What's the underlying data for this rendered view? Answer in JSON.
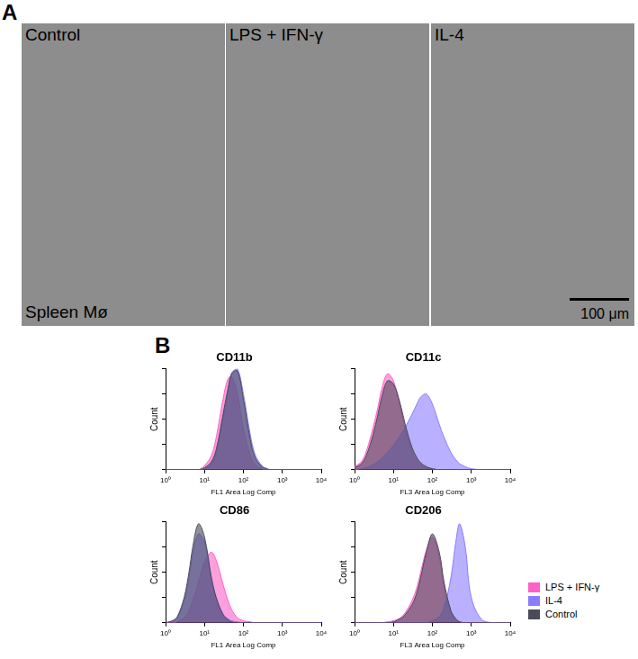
{
  "panels": {
    "A": {
      "label": "A",
      "images": [
        {
          "label": "Control"
        },
        {
          "label": "LPS + IFN-γ"
        },
        {
          "label": "IL-4"
        }
      ],
      "tissue_label": "Spleen Mø",
      "scale_bar": "100 μm"
    },
    "B": {
      "label": "B"
    }
  },
  "chart_data": [
    {
      "type": "area",
      "title": "CD11b",
      "xlabel": "FL1 Area Log Comp",
      "ylabel": "Count",
      "log": "x",
      "grid": false,
      "tick_labels": "x",
      "x": [
        1,
        1.5,
        2,
        3,
        4,
        5,
        7,
        10,
        15,
        20,
        30,
        40,
        50,
        70,
        100,
        150,
        200,
        300,
        400,
        500,
        700,
        1000,
        2000,
        5000,
        10000
      ],
      "xlim": [
        1,
        10000
      ],
      "xticks": [
        {
          "value": 1,
          "label": "10⁰"
        },
        {
          "value": 10,
          "label": "10¹"
        },
        {
          "value": 100,
          "label": "10²"
        },
        {
          "value": 1000,
          "label": "10³"
        },
        {
          "value": 10000,
          "label": "10⁴"
        }
      ],
      "ylim": [
        0,
        100
      ],
      "yticks": [
        0,
        25,
        50,
        75,
        100
      ],
      "series": [
        {
          "name": "LPS + IFN-γ",
          "color": "#ff5fc8",
          "values": [
            0,
            0,
            0,
            0,
            0,
            0,
            0,
            4,
            14,
            32,
            70,
            90,
            92,
            75,
            40,
            14,
            5,
            1,
            0,
            0,
            0,
            0,
            0,
            0,
            0
          ]
        },
        {
          "name": "IL-4",
          "color": "#8a7cff",
          "values": [
            0,
            0,
            0,
            0,
            0,
            0,
            0,
            1,
            6,
            17,
            50,
            78,
            96,
            100,
            75,
            35,
            15,
            4,
            1,
            0,
            0,
            0,
            0,
            0,
            0
          ]
        },
        {
          "name": "Control",
          "color": "#4a4a5a",
          "values": [
            0,
            0,
            0,
            0,
            0,
            0,
            0,
            2,
            8,
            20,
            55,
            80,
            95,
            98,
            70,
            30,
            12,
            3,
            1,
            0,
            0,
            0,
            0,
            0,
            0
          ]
        }
      ]
    },
    {
      "type": "area",
      "title": "CD11c",
      "xlabel": "FL3 Area Log Comp",
      "ylabel": "Count",
      "log": "x",
      "grid": false,
      "tick_labels": "x",
      "x": [
        1,
        1.5,
        2,
        3,
        4,
        5,
        7,
        10,
        15,
        20,
        30,
        40,
        50,
        70,
        100,
        150,
        200,
        300,
        400,
        500,
        700,
        1000,
        2000,
        5000,
        10000
      ],
      "xlim": [
        1,
        10000
      ],
      "xticks": [
        {
          "value": 1,
          "label": "10⁰"
        },
        {
          "value": 10,
          "label": "10¹"
        },
        {
          "value": 100,
          "label": "10²"
        },
        {
          "value": 1000,
          "label": "10³"
        },
        {
          "value": 10000,
          "label": "10⁴"
        }
      ],
      "ylim": [
        0,
        100
      ],
      "yticks": [
        0,
        25,
        50,
        75,
        100
      ],
      "series": [
        {
          "name": "LPS + IFN-γ",
          "color": "#ff5fc8",
          "values": [
            3,
            8,
            18,
            42,
            62,
            80,
            95,
            88,
            62,
            40,
            18,
            9,
            5,
            2,
            1,
            0,
            0,
            0,
            0,
            0,
            0,
            0,
            0,
            0,
            0
          ]
        },
        {
          "name": "IL-4",
          "color": "#8a7cff",
          "values": [
            0,
            1,
            2,
            5,
            8,
            11,
            17,
            24,
            34,
            42,
            55,
            65,
            72,
            75,
            65,
            45,
            32,
            17,
            10,
            6,
            3,
            1,
            0,
            0,
            0
          ]
        },
        {
          "name": "Control",
          "color": "#4a4a5a",
          "values": [
            2,
            6,
            14,
            35,
            55,
            72,
            88,
            85,
            65,
            45,
            22,
            12,
            7,
            3,
            1,
            0,
            0,
            0,
            0,
            0,
            0,
            0,
            0,
            0,
            0
          ]
        }
      ]
    },
    {
      "type": "area",
      "title": "CD86",
      "xlabel": "FL1 Area Log Comp",
      "ylabel": "Count",
      "log": "x",
      "grid": false,
      "tick_labels": "x",
      "x": [
        1,
        1.5,
        2,
        3,
        4,
        5,
        7,
        10,
        15,
        20,
        30,
        40,
        50,
        70,
        100,
        150,
        200,
        300,
        400,
        500,
        700,
        1000,
        2000,
        5000,
        10000
      ],
      "xlim": [
        1,
        10000
      ],
      "xticks": [
        {
          "value": 1,
          "label": "10⁰"
        },
        {
          "value": 10,
          "label": "10¹"
        },
        {
          "value": 100,
          "label": "10²"
        },
        {
          "value": 1000,
          "label": "10³"
        },
        {
          "value": 10000,
          "label": "10⁴"
        }
      ],
      "ylim": [
        0,
        100
      ],
      "yticks": [
        0,
        25,
        50,
        75,
        100
      ],
      "series": [
        {
          "name": "LPS + IFN-γ",
          "color": "#ff5fc8",
          "values": [
            0,
            0,
            1,
            5,
            12,
            22,
            40,
            60,
            70,
            62,
            38,
            22,
            13,
            5,
            2,
            1,
            0,
            0,
            0,
            0,
            0,
            0,
            0,
            0,
            0
          ]
        },
        {
          "name": "IL-4",
          "color": "#8a7cff",
          "values": [
            0,
            2,
            5,
            22,
            45,
            68,
            88,
            80,
            45,
            25,
            9,
            4,
            2,
            1,
            0,
            0,
            0,
            0,
            0,
            0,
            0,
            0,
            0,
            0,
            0
          ]
        },
        {
          "name": "Control",
          "color": "#4a4a5a",
          "values": [
            0,
            2,
            6,
            25,
            50,
            75,
            98,
            85,
            45,
            25,
            8,
            3,
            1,
            0,
            0,
            0,
            0,
            0,
            0,
            0,
            0,
            0,
            0,
            0,
            0
          ]
        }
      ]
    },
    {
      "type": "area",
      "title": "CD206",
      "xlabel": "FL3 Area Log Comp",
      "ylabel": "Count",
      "log": "x",
      "grid": false,
      "tick_labels": "x",
      "legend": "right",
      "x": [
        1,
        1.5,
        2,
        3,
        4,
        5,
        7,
        10,
        15,
        20,
        30,
        40,
        50,
        70,
        100,
        150,
        200,
        300,
        400,
        500,
        700,
        1000,
        2000,
        5000,
        10000
      ],
      "xlim": [
        1,
        10000
      ],
      "xticks": [
        {
          "value": 1,
          "label": "10⁰"
        },
        {
          "value": 10,
          "label": "10¹"
        },
        {
          "value": 100,
          "label": "10²"
        },
        {
          "value": 1000,
          "label": "10³"
        },
        {
          "value": 10000,
          "label": "10⁴"
        }
      ],
      "ylim": [
        0,
        100
      ],
      "yticks": [
        0,
        25,
        50,
        75,
        100
      ],
      "series": [
        {
          "name": "LPS + IFN-γ",
          "color": "#ff5fc8",
          "values": [
            0,
            0,
            0,
            0,
            0,
            0,
            1,
            2,
            5,
            10,
            22,
            35,
            50,
            72,
            85,
            65,
            35,
            10,
            3,
            1,
            0,
            0,
            0,
            0,
            0
          ]
        },
        {
          "name": "IL-4",
          "color": "#8a7cff",
          "values": [
            0,
            0,
            0,
            0,
            0,
            0,
            0,
            0,
            0,
            0,
            0,
            0,
            0,
            0,
            2,
            6,
            15,
            45,
            80,
            98,
            75,
            25,
            2,
            0,
            0
          ]
        },
        {
          "name": "Control",
          "color": "#4a4a5a",
          "values": [
            0,
            0,
            0,
            0,
            0,
            0,
            0,
            1,
            4,
            8,
            18,
            30,
            45,
            70,
            88,
            70,
            40,
            12,
            4,
            1,
            0,
            0,
            0,
            0,
            0
          ]
        }
      ]
    }
  ]
}
